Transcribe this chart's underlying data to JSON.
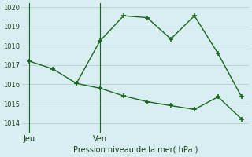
{
  "title": "",
  "xlabel": "Pression niveau de la mer( hPa )",
  "ylabel": "",
  "background_color": "#d8eef0",
  "plot_background": "#d8eef0",
  "grid_color": "#b0c8cc",
  "line_color": "#1a6620",
  "line1_x": [
    0,
    1,
    2,
    3,
    4,
    5,
    6,
    7,
    8,
    9
  ],
  "line1_y": [
    1017.2,
    1016.8,
    1016.05,
    1015.8,
    1015.4,
    1015.1,
    1014.9,
    1014.7,
    1015.35,
    1014.2
  ],
  "line2_x": [
    2,
    3,
    4,
    5,
    6,
    7,
    8,
    9
  ],
  "line2_y": [
    1016.05,
    1018.25,
    1019.55,
    1019.45,
    1018.35,
    1019.55,
    1017.6,
    1015.35
  ],
  "vline_positions": [
    0,
    3
  ],
  "vline_labels": [
    "Jeu",
    "Ven"
  ],
  "ylim": [
    1013.5,
    1020.2
  ],
  "yticks": [
    1014,
    1015,
    1016,
    1017,
    1018,
    1019,
    1020
  ]
}
